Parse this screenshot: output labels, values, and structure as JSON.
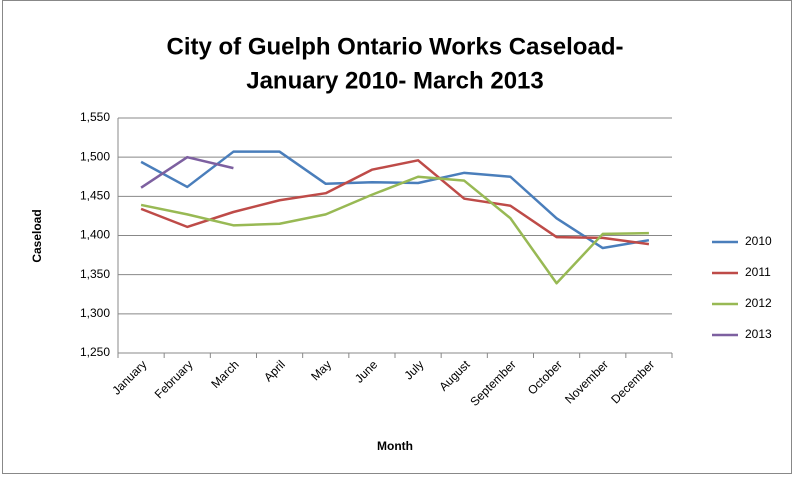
{
  "chart_data": {
    "type": "line",
    "title": [
      "City of Guelph Ontario Works Caseload-",
      "January 2010- March 2013"
    ],
    "x_label": "Month",
    "y_label": "Caseload",
    "categories": [
      "January",
      "February",
      "March",
      "April",
      "May",
      "June",
      "July",
      "August",
      "September",
      "October",
      "November",
      "December"
    ],
    "series": [
      {
        "name": "2010",
        "color": "#4a7ebb",
        "values": [
          1494,
          1462,
          1507,
          1507,
          1466,
          1468,
          1467,
          1480,
          1475,
          1422,
          1384,
          1394
        ]
      },
      {
        "name": "2011",
        "color": "#be4b48",
        "values": [
          1434,
          1411,
          1430,
          1445,
          1454,
          1484,
          1496,
          1447,
          1438,
          1398,
          1397,
          1389
        ]
      },
      {
        "name": "2012",
        "color": "#98b954",
        "values": [
          1439,
          1427,
          1413,
          1415,
          1427,
          1452,
          1475,
          1470,
          1422,
          1339,
          1402,
          1403
        ]
      },
      {
        "name": "2013",
        "color": "#7d60a0",
        "values": [
          1461,
          1500,
          1486,
          null,
          null,
          null,
          null,
          null,
          null,
          null,
          null,
          null
        ]
      }
    ],
    "ylim": [
      1250,
      1550
    ],
    "yticks": [
      {
        "value": 1250,
        "label": "1,250"
      },
      {
        "value": 1300,
        "label": "1,300"
      },
      {
        "value": 1350,
        "label": "1,350"
      },
      {
        "value": 1400,
        "label": "1,400"
      },
      {
        "value": 1450,
        "label": "1,450"
      },
      {
        "value": 1500,
        "label": "1,500"
      },
      {
        "value": 1550,
        "label": "1,550"
      }
    ],
    "grid": true,
    "legend": "right"
  }
}
